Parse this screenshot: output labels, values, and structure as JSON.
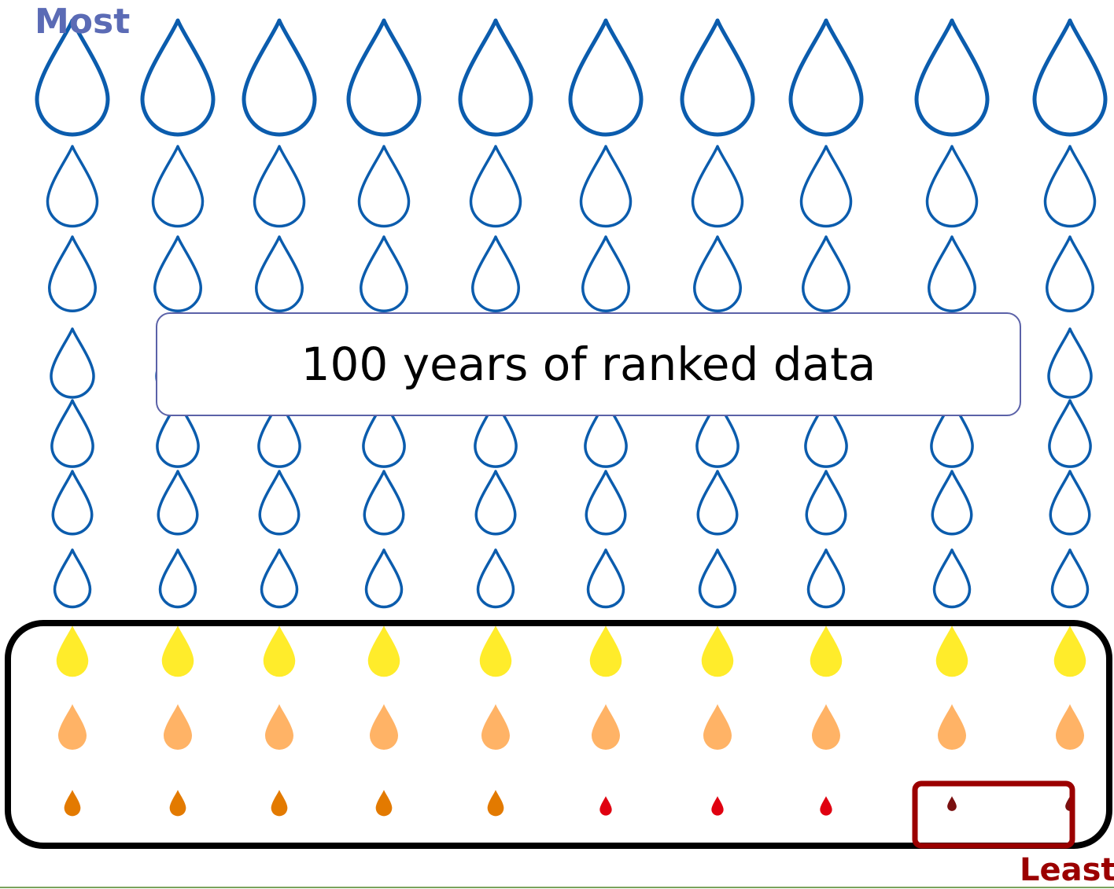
{
  "labels": {
    "most": "Most",
    "least": "Least",
    "title": "100 years of ranked data"
  },
  "colors": {
    "wet_outline": "#0b5cad",
    "most_label": "#5b6bb5",
    "least_label": "#9b0000",
    "dry_yellow": "#ffec2b",
    "dry_peach": "#ffb366",
    "dry_orange": "#e37a00",
    "dry_red": "#e00010",
    "dry_darkred": "#7a1010",
    "dry_group_outline": "#000000",
    "least_group_outline": "#9b0000",
    "title_border": "#5b62a8"
  },
  "chart_data": {
    "type": "pictogram",
    "total_years": 100,
    "rows": [
      {
        "rank_group": 1,
        "style": "outline",
        "color": "wet_outline",
        "count": 10
      },
      {
        "rank_group": 2,
        "style": "outline",
        "color": "wet_outline",
        "count": 10
      },
      {
        "rank_group": 3,
        "style": "outline",
        "color": "wet_outline",
        "count": 10
      },
      {
        "rank_group": 4,
        "style": "outline",
        "color": "wet_outline",
        "count": 10
      },
      {
        "rank_group": 5,
        "style": "outline",
        "color": "wet_outline",
        "count": 10
      },
      {
        "rank_group": 6,
        "style": "outline",
        "color": "wet_outline",
        "count": 10
      },
      {
        "rank_group": 7,
        "style": "outline",
        "color": "wet_outline",
        "count": 10
      },
      {
        "rank_group": 8,
        "style": "filled",
        "color": "dry_yellow",
        "count": 10
      },
      {
        "rank_group": 9,
        "style": "filled",
        "color": "dry_peach",
        "count": 10
      },
      {
        "rank_group": 10,
        "style": "filled",
        "colors": [
          "dry_orange",
          "dry_orange",
          "dry_orange",
          "dry_orange",
          "dry_orange",
          "dry_red",
          "dry_red",
          "dry_red",
          "dry_darkred",
          "dry_darkred"
        ],
        "count": 10
      }
    ],
    "highlighted_groups": [
      {
        "name": "driest-30-years",
        "rows": [
          8,
          9,
          10
        ]
      },
      {
        "name": "driest-2-years",
        "row": 10,
        "items": [
          9,
          10
        ]
      }
    ]
  }
}
